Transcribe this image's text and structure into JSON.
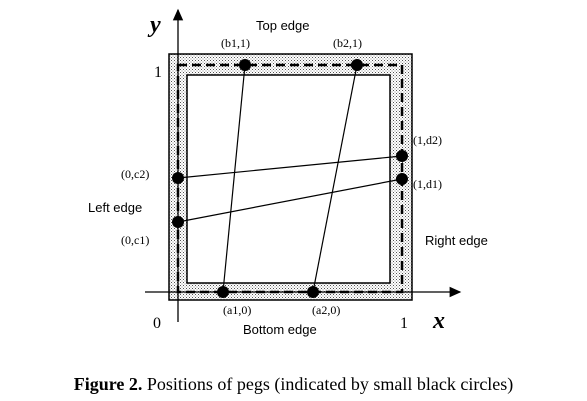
{
  "figure": {
    "edges": {
      "top": "Top edge",
      "bottom": "Bottom edge",
      "left": "Left edge",
      "right": "Right edge"
    },
    "axes": {
      "x_label": "x",
      "y_label": "y",
      "origin": "0",
      "x_one": "1",
      "y_one": "1"
    },
    "pegs": [
      {
        "label": "(b1,1)"
      },
      {
        "label": "(b2,1)"
      },
      {
        "label": "(1,d2)"
      },
      {
        "label": "(1,d1)"
      },
      {
        "label": "(0,c2)"
      },
      {
        "label": "(0,c1)"
      },
      {
        "label": "(a1,0)"
      },
      {
        "label": "(a2,0)"
      }
    ]
  },
  "caption": {
    "figure_number": "Figure 2.",
    "text": "Positions of pegs (indicated by small black circles)"
  }
}
